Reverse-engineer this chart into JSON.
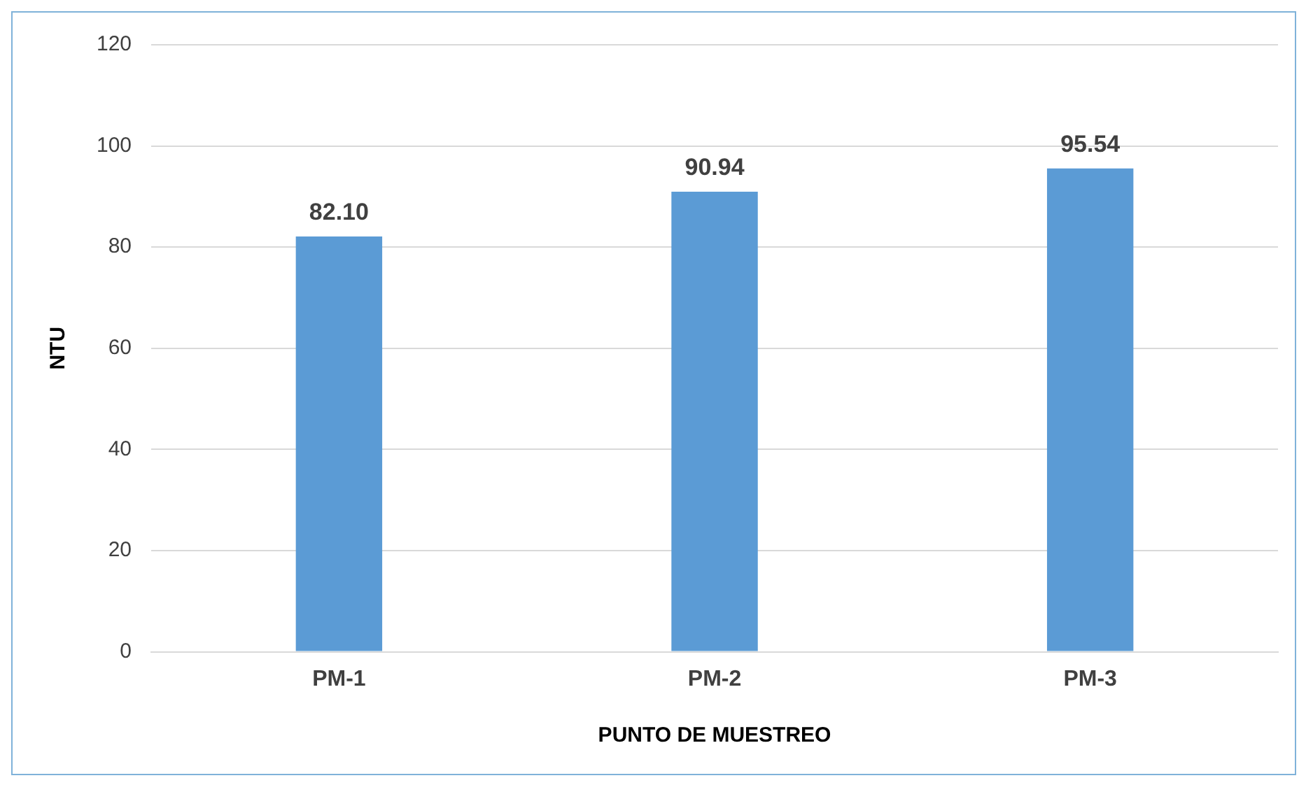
{
  "chart_data": {
    "type": "bar",
    "xlabel": "PUNTO DE MUESTREO",
    "ylabel": "NTU",
    "categories": [
      "PM-1",
      "PM-2",
      "PM-3"
    ],
    "values": [
      82.1,
      90.94,
      95.54
    ],
    "value_labels": [
      "82.10",
      "90.94",
      "95.54"
    ],
    "color": "#5b9bd5",
    "ylim": [
      0,
      120
    ],
    "yticks": [
      0,
      20,
      40,
      60,
      80,
      100,
      120
    ],
    "grid": "y",
    "legend": false
  }
}
